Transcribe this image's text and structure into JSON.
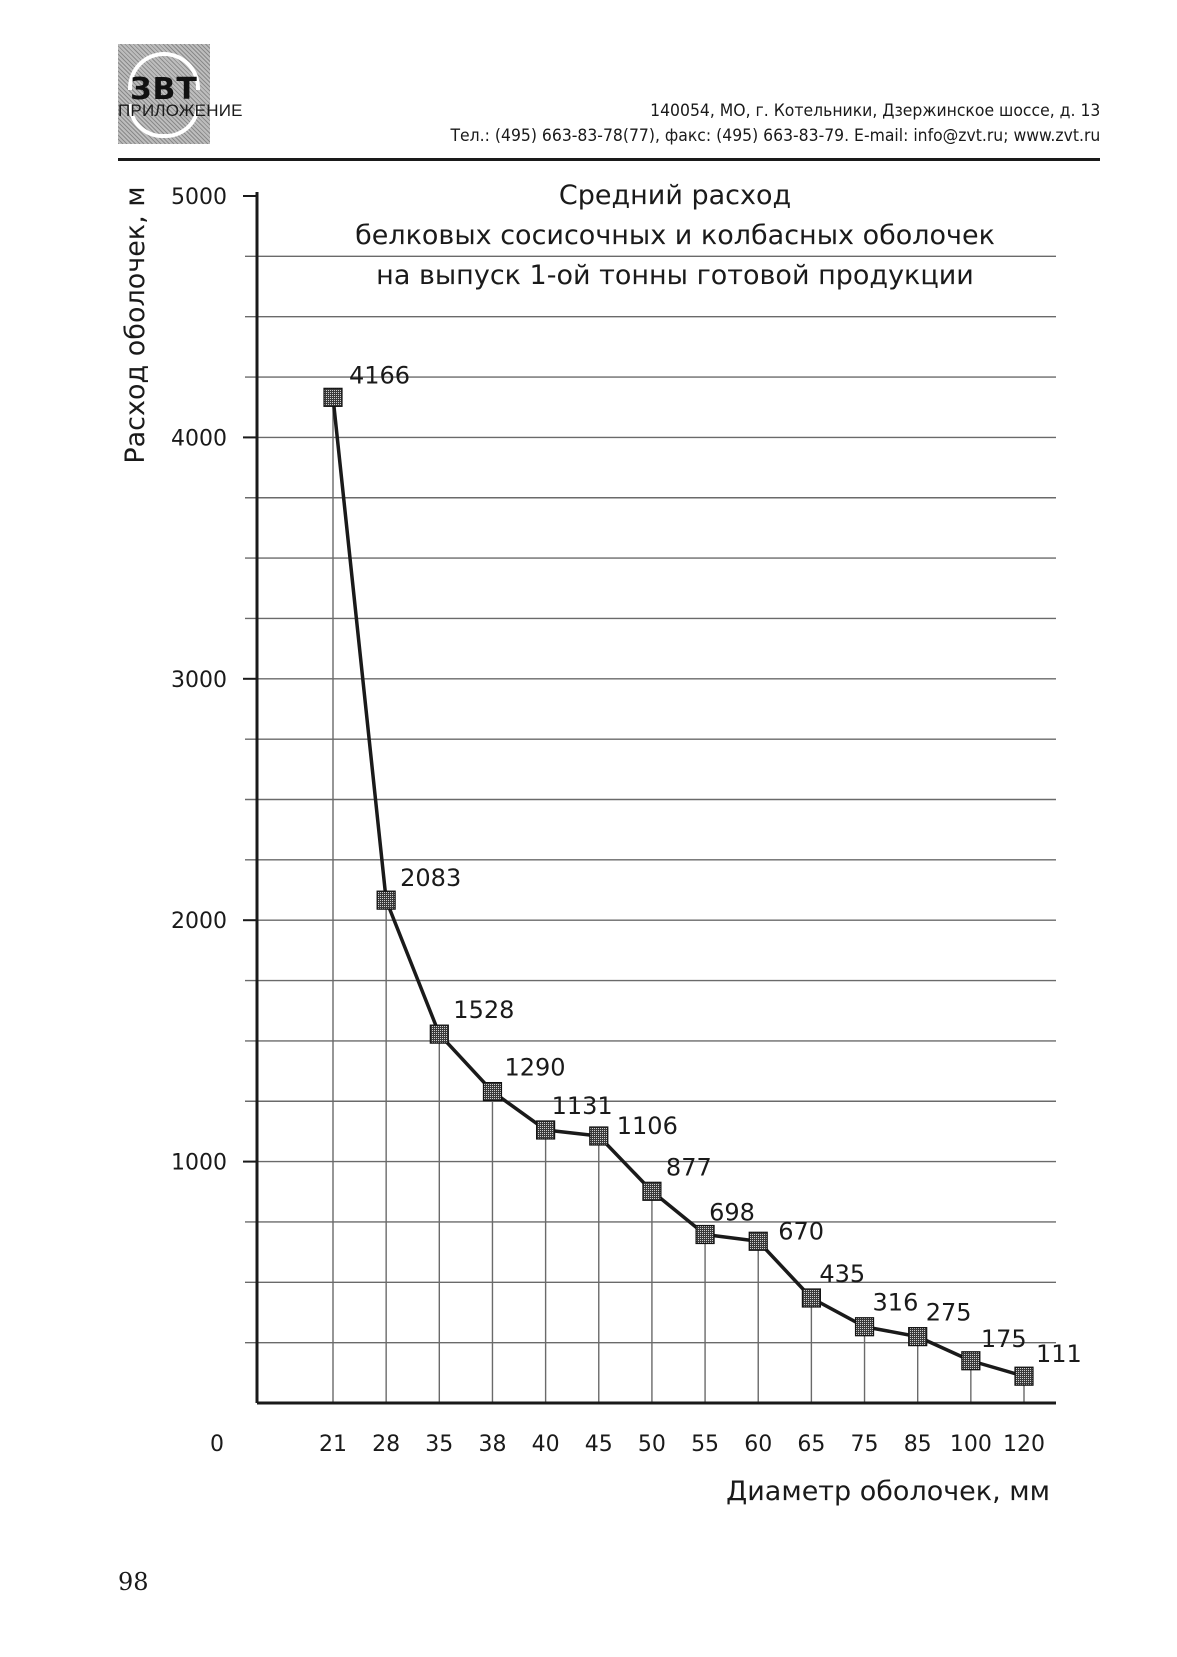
{
  "header": {
    "brand": "ЗВТ",
    "section": "ПРИЛОЖЕНИЕ",
    "address": "140054, МО, г. Котельники, Дзержинское шоссе, д. 13",
    "contacts": "Тел.: (495) 663-83-78(77), факс: (495) 663-83-79. E-mail: info@zvt.ru; www.zvt.ru"
  },
  "chart_data": {
    "type": "line",
    "title_lines": [
      "Средний расход",
      "белковых сосисочных и колбасных оболочек",
      "на выпуск 1-ой тонны готовой продукции"
    ],
    "xlabel": "Диаметр оболочек, мм",
    "ylabel": "Расход оболочек, м",
    "origin_label": "0",
    "categories": [
      "21",
      "28",
      "35",
      "38",
      "40",
      "45",
      "50",
      "55",
      "60",
      "65",
      "75",
      "85",
      "100",
      "120"
    ],
    "values": [
      4166,
      2083,
      1528,
      1290,
      1131,
      1106,
      877,
      698,
      670,
      435,
      316,
      275,
      175,
      111
    ],
    "yticks": [
      1000,
      2000,
      3000,
      4000,
      5000
    ],
    "ylim": [
      0,
      5000
    ],
    "grid": true,
    "marker": "square"
  },
  "page_number": "98"
}
